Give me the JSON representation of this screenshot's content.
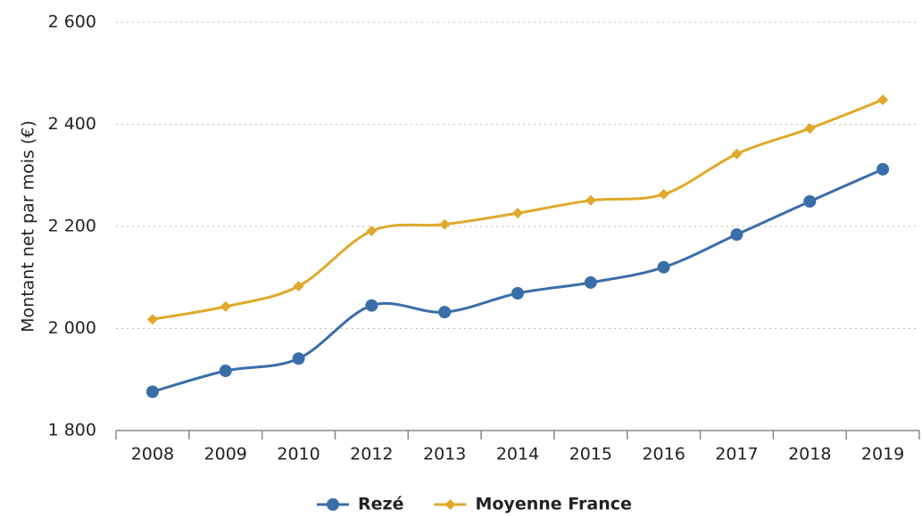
{
  "chart_data": {
    "type": "line",
    "y_label": "Montant net par mois (€)",
    "categories": [
      "2008",
      "2009",
      "2010",
      "2012",
      "2013",
      "2014",
      "2015",
      "2016",
      "2017",
      "2018",
      "2019"
    ],
    "series": [
      {
        "name": "Rezé",
        "color": "#3a6ea8",
        "marker": "circle",
        "values": [
          1876,
          1917,
          1941,
          2045,
          2032,
          2069,
          2090,
          2120,
          2184,
          2249,
          2312
        ]
      },
      {
        "name": "Moyenne France",
        "color": "#e0a92a",
        "marker": "diamond",
        "values": [
          2018,
          2043,
          2083,
          2191,
          2204,
          2226,
          2251,
          2263,
          2342,
          2392,
          2448
        ]
      }
    ],
    "ylim": [
      1800,
      2600
    ],
    "yticks": [
      {
        "value": 1800,
        "label": "1 800"
      },
      {
        "value": 2000,
        "label": "2 000"
      },
      {
        "value": 2200,
        "label": "2 200"
      },
      {
        "value": 2400,
        "label": "2 400"
      },
      {
        "value": 2600,
        "label": "2 600"
      }
    ],
    "grid": true,
    "legend": "bottom"
  }
}
